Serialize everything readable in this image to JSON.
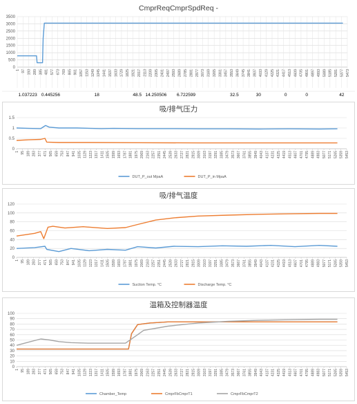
{
  "chart_data": [
    {
      "type": "line",
      "title": "CmprReqCmprSpdReq -",
      "ylim": [
        0,
        3500
      ],
      "yticks": [
        0,
        500,
        1000,
        1500,
        2000,
        2500,
        3000,
        3500
      ],
      "xticks": [
        "1",
        "97",
        "193",
        "289",
        "385",
        "481",
        "577",
        "673",
        "769",
        "865",
        "961",
        "1057",
        "1153",
        "1249",
        "1345",
        "1441",
        "1537",
        "1633",
        "1729",
        "1825",
        "1921",
        "2017",
        "2113",
        "2209",
        "2305",
        "2401",
        "2497",
        "2593",
        "2689",
        "2785",
        "2881",
        "2977",
        "3073",
        "3169",
        "3265",
        "3361",
        "3457",
        "3553",
        "3649",
        "3745",
        "3841",
        "3937",
        "4033",
        "4129",
        "4225",
        "4321",
        "4417",
        "4513",
        "4609",
        "4705",
        "4801",
        "4897",
        "4993",
        "5089",
        "5185",
        "5281",
        "5377",
        "5473"
      ],
      "xmax": 5473,
      "grid": true,
      "legend": "none",
      "series": [
        {
          "color": "#5b9bd5",
          "points": [
            [
              1,
              780
            ],
            [
              320,
              780
            ],
            [
              330,
              300
            ],
            [
              420,
              300
            ],
            [
              430,
              2000
            ],
            [
              450,
              3050
            ],
            [
              5400,
              3050
            ]
          ]
        }
      ],
      "table_row": [
        {
          "text": "1.037223",
          "x": 175
        },
        {
          "text": "0.445256",
          "x": 555
        },
        {
          "text": "18",
          "x": 1320
        },
        {
          "text": "48.5",
          "x": 1990
        },
        {
          "text": "14.250506",
          "x": 2300
        },
        {
          "text": "6.722599",
          "x": 2800
        },
        {
          "text": "32.5",
          "x": 3600
        },
        {
          "text": "30",
          "x": 4000
        },
        {
          "text": "0",
          "x": 4450
        },
        {
          "text": "0",
          "x": 4800
        },
        {
          "text": "42",
          "x": 5380
        }
      ]
    },
    {
      "type": "line",
      "title": "吸/排气压力",
      "ylim": [
        0,
        1.5
      ],
      "yticks": [
        0,
        0.5,
        1,
        1.5
      ],
      "xticks": [
        "1",
        "95",
        "189",
        "283",
        "377",
        "471",
        "565",
        "659",
        "753",
        "847",
        "941",
        "1035",
        "1129",
        "1223",
        "1317",
        "1411",
        "1505",
        "1599",
        "1693",
        "1787",
        "1881",
        "1975",
        "2069",
        "2163",
        "2257",
        "2351",
        "2445",
        "2539",
        "2633",
        "2727",
        "2821",
        "2915",
        "3009",
        "3103",
        "3197",
        "3291",
        "3385",
        "3479",
        "3573",
        "3667",
        "3761",
        "3855",
        "3949",
        "4043",
        "4137",
        "4231",
        "4325",
        "4419",
        "4513",
        "4607",
        "4701",
        "4795",
        "4889",
        "4983",
        "5077",
        "5171",
        "5265",
        "5359",
        "5453"
      ],
      "xmax": 5453,
      "grid": true,
      "legend": "bottom",
      "series": [
        {
          "name": "DUT_P_out MpaA",
          "color": "#5b9bd5",
          "points": [
            [
              1,
              1.0
            ],
            [
              200,
              0.98
            ],
            [
              400,
              0.97
            ],
            [
              480,
              1.12
            ],
            [
              540,
              1.04
            ],
            [
              700,
              1.0
            ],
            [
              1000,
              1.0
            ],
            [
              1400,
              0.97
            ],
            [
              1600,
              0.98
            ],
            [
              2000,
              0.97
            ],
            [
              2500,
              0.97
            ],
            [
              3000,
              0.96
            ],
            [
              3500,
              0.96
            ],
            [
              4000,
              0.95
            ],
            [
              4500,
              0.96
            ],
            [
              5000,
              0.95
            ],
            [
              5300,
              0.96
            ]
          ]
        },
        {
          "name": "DUT_P_in MpaA",
          "color": "#ed7d31",
          "points": [
            [
              1,
              0.4
            ],
            [
              200,
              0.43
            ],
            [
              400,
              0.45
            ],
            [
              470,
              0.5
            ],
            [
              500,
              0.32
            ],
            [
              700,
              0.3
            ],
            [
              1200,
              0.3
            ],
            [
              2000,
              0.29
            ],
            [
              3000,
              0.28
            ],
            [
              4000,
              0.28
            ],
            [
              5300,
              0.28
            ]
          ]
        }
      ]
    },
    {
      "type": "line",
      "title": "吸/排气温度",
      "ylim": [
        0,
        120
      ],
      "yticks": [
        0,
        20,
        40,
        60,
        80,
        100,
        120
      ],
      "xticks": [
        "1",
        "95",
        "189",
        "283",
        "377",
        "471",
        "565",
        "659",
        "753",
        "847",
        "941",
        "1035",
        "1129",
        "1223",
        "1317",
        "1411",
        "1505",
        "1599",
        "1693",
        "1787",
        "1881",
        "1975",
        "2069",
        "2163",
        "2257",
        "2351",
        "2445",
        "2539",
        "2633",
        "2727",
        "2821",
        "2915",
        "3009",
        "3103",
        "3197",
        "3291",
        "3385",
        "3479",
        "3573",
        "3667",
        "3761",
        "3855",
        "3949",
        "4043",
        "4137",
        "4231",
        "4325",
        "4419",
        "4513",
        "4607",
        "4701",
        "4795",
        "4889",
        "4983",
        "5077",
        "5171",
        "5265",
        "5359",
        "5453"
      ],
      "xmax": 5453,
      "grid": true,
      "legend": "bottom",
      "series": [
        {
          "name": "Suction Temp. °C",
          "color": "#5b9bd5",
          "points": [
            [
              1,
              20
            ],
            [
              300,
              22
            ],
            [
              470,
              25
            ],
            [
              500,
              18
            ],
            [
              700,
              13
            ],
            [
              900,
              20
            ],
            [
              1200,
              15
            ],
            [
              1500,
              18
            ],
            [
              1800,
              16
            ],
            [
              2000,
              24
            ],
            [
              2300,
              21
            ],
            [
              2600,
              25
            ],
            [
              3000,
              24
            ],
            [
              3400,
              26
            ],
            [
              3800,
              25
            ],
            [
              4200,
              27
            ],
            [
              4600,
              24
            ],
            [
              5000,
              27
            ],
            [
              5300,
              25
            ]
          ]
        },
        {
          "name": "Discharge Temp. °C",
          "color": "#ed7d31",
          "points": [
            [
              1,
              48
            ],
            [
              300,
              54
            ],
            [
              400,
              58
            ],
            [
              450,
              42
            ],
            [
              520,
              68
            ],
            [
              600,
              70
            ],
            [
              800,
              66
            ],
            [
              1100,
              69
            ],
            [
              1500,
              65
            ],
            [
              1800,
              67
            ],
            [
              2000,
              74
            ],
            [
              2300,
              84
            ],
            [
              2600,
              89
            ],
            [
              3000,
              93
            ],
            [
              3500,
              95
            ],
            [
              4000,
              97
            ],
            [
              4500,
              98
            ],
            [
              5000,
              99
            ],
            [
              5300,
              99
            ]
          ]
        }
      ]
    },
    {
      "type": "line",
      "title": "温箱及控制器温度",
      "ylim": [
        0,
        100
      ],
      "yticks": [
        0,
        10,
        20,
        30,
        40,
        50,
        60,
        70,
        80,
        90,
        100
      ],
      "xticks": [
        "1",
        "95",
        "189",
        "283",
        "377",
        "471",
        "565",
        "659",
        "753",
        "847",
        "941",
        "1035",
        "1129",
        "1223",
        "1317",
        "1411",
        "1505",
        "1599",
        "1693",
        "1787",
        "1881",
        "1975",
        "2069",
        "2163",
        "2257",
        "2351",
        "2445",
        "2539",
        "2633",
        "2727",
        "2821",
        "2915",
        "3009",
        "3103",
        "3197",
        "3291",
        "3385",
        "3479",
        "3573",
        "3667",
        "3761",
        "3855",
        "3949",
        "4043",
        "4137",
        "4231",
        "4325",
        "4419",
        "4513",
        "4607",
        "4701",
        "4795",
        "4889",
        "4983",
        "5077",
        "5171",
        "5265",
        "5359",
        "5453"
      ],
      "xmax": 5453,
      "grid": true,
      "legend": "bottom",
      "series": [
        {
          "name": "Chamber_Temp",
          "color": "#5b9bd5",
          "points": [
            [
              1,
              33
            ],
            [
              1850,
              33
            ],
            [
              1900,
              62
            ],
            [
              2000,
              79
            ],
            [
              2200,
              82
            ],
            [
              2500,
              84
            ],
            [
              5300,
              84
            ]
          ]
        },
        {
          "name": "CmprFbCmprT1",
          "color": "#ed7d31",
          "points": [
            [
              1,
              33
            ],
            [
              1850,
              33
            ],
            [
              1900,
              62
            ],
            [
              2000,
              79
            ],
            [
              2200,
              82
            ],
            [
              2500,
              84
            ],
            [
              5300,
              84
            ]
          ]
        },
        {
          "name": "CmprFbCmprT2",
          "color": "#a5a5a5",
          "points": [
            [
              1,
              40
            ],
            [
              200,
              46
            ],
            [
              400,
              52
            ],
            [
              550,
              50
            ],
            [
              700,
              47
            ],
            [
              900,
              45
            ],
            [
              1200,
              44
            ],
            [
              1800,
              44
            ],
            [
              2000,
              60
            ],
            [
              2100,
              68
            ],
            [
              2500,
              76
            ],
            [
              3000,
              82
            ],
            [
              3500,
              85
            ],
            [
              4000,
              87
            ],
            [
              4500,
              88
            ],
            [
              5000,
              89
            ],
            [
              5300,
              89
            ]
          ]
        }
      ]
    }
  ]
}
